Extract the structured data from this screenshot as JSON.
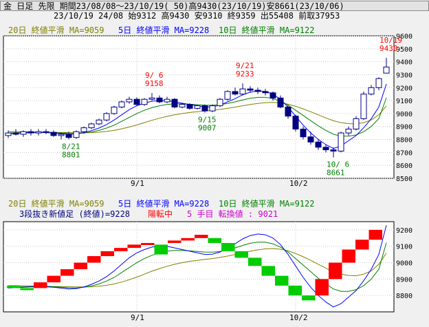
{
  "header": {
    "line1": "金 日足 先限 期間23/08/08～23/10/19( 50)高9430(23/10/19)安8661(23/10/06)",
    "line2": "23/10/19 24/08 始9312 高9430 安9310 終9359 出55408 前取37953"
  },
  "legend": {
    "ma20": "20日 終値平滑 MA=9059",
    "ma5": "5日 終値平滑 MA=9228",
    "ma10": "10日 終値平滑 MA=9122"
  },
  "lower_info": {
    "part1": "3段抜き新値足 (終値)=9228",
    "part2": "陽転中",
    "part3": "5 手目 転換値 : 9021"
  },
  "annotations": {
    "low1": {
      "date": "8/21",
      "value": "8801"
    },
    "high1": {
      "date": "9/ 6",
      "value": "9158"
    },
    "low2": {
      "date": "9/15",
      "value": "9007"
    },
    "high2": {
      "date": "9/21",
      "value": "9233"
    },
    "low3": {
      "date": "10/ 6",
      "value": "8661"
    },
    "high3": {
      "date": "10/19",
      "value": "9430"
    }
  },
  "colors": {
    "up": "#ff0000",
    "down": "#00cc00",
    "ma5": "#0000ff",
    "ma10": "#008000",
    "ma20": "#808000",
    "candle_down": "#000080"
  },
  "chart_data": [
    {
      "type": "candlestick",
      "title": "金 日足 先限",
      "ylim": [
        8500,
        9600
      ],
      "y_ticks": [
        8500,
        8600,
        8700,
        8800,
        8900,
        9000,
        9100,
        9200,
        9300,
        9400,
        9500,
        9600
      ],
      "x_ticks": [
        "9/1",
        "10/2"
      ],
      "ohlc": [
        [
          8830,
          8870,
          8810,
          8850
        ],
        [
          8850,
          8880,
          8830,
          8840
        ],
        [
          8840,
          8870,
          8820,
          8860
        ],
        [
          8860,
          8880,
          8830,
          8850
        ],
        [
          8850,
          8880,
          8830,
          8860
        ],
        [
          8860,
          8880,
          8840,
          8855
        ],
        [
          8855,
          8870,
          8820,
          8830
        ],
        [
          8830,
          8850,
          8800,
          8840
        ],
        [
          8840,
          8860,
          8801,
          8815
        ],
        [
          8815,
          8870,
          8805,
          8860
        ],
        [
          8860,
          8900,
          8845,
          8890
        ],
        [
          8890,
          8930,
          8880,
          8920
        ],
        [
          8920,
          8960,
          8910,
          8950
        ],
        [
          8950,
          9010,
          8940,
          9000
        ],
        [
          9000,
          9060,
          8990,
          9050
        ],
        [
          9050,
          9100,
          9040,
          9090
        ],
        [
          9090,
          9130,
          9075,
          9110
        ],
        [
          9110,
          9125,
          9060,
          9070
        ],
        [
          9070,
          9120,
          9060,
          9110
        ],
        [
          9110,
          9158,
          9100,
          9120
        ],
        [
          9120,
          9140,
          9080,
          9090
        ],
        [
          9090,
          9130,
          9080,
          9110
        ],
        [
          9110,
          9120,
          9040,
          9050
        ],
        [
          9050,
          9080,
          9040,
          9070
        ],
        [
          9070,
          9080,
          9030,
          9040
        ],
        [
          9040,
          9070,
          9030,
          9060
        ],
        [
          9060,
          9070,
          9007,
          9020
        ],
        [
          9020,
          9070,
          9010,
          9060
        ],
        [
          9060,
          9120,
          9050,
          9110
        ],
        [
          9110,
          9180,
          9100,
          9170
        ],
        [
          9170,
          9200,
          9140,
          9150
        ],
        [
          9150,
          9233,
          9140,
          9190
        ],
        [
          9190,
          9210,
          9160,
          9180
        ],
        [
          9180,
          9200,
          9150,
          9170
        ],
        [
          9170,
          9190,
          9140,
          9160
        ],
        [
          9160,
          9170,
          9100,
          9120
        ],
        [
          9120,
          9140,
          9040,
          9050
        ],
        [
          9050,
          9060,
          8960,
          8980
        ],
        [
          8980,
          8990,
          8860,
          8880
        ],
        [
          8880,
          8900,
          8800,
          8820
        ],
        [
          8820,
          8860,
          8760,
          8780
        ],
        [
          8780,
          8800,
          8720,
          8740
        ],
        [
          8740,
          8760,
          8700,
          8720
        ],
        [
          8720,
          8740,
          8661,
          8710
        ],
        [
          8710,
          8860,
          8700,
          8850
        ],
        [
          8850,
          8900,
          8830,
          8880
        ],
        [
          8880,
          8980,
          8870,
          8960
        ],
        [
          8960,
          9170,
          8950,
          9150
        ],
        [
          9150,
          9220,
          9140,
          9200
        ],
        [
          9200,
          9280,
          9180,
          9270
        ],
        [
          9312,
          9430,
          9310,
          9359
        ]
      ],
      "ma5": [
        8845,
        8848,
        8850,
        8852,
        8853,
        8853,
        8850,
        8845,
        8840,
        8842,
        8852,
        8868,
        8888,
        8915,
        8950,
        8990,
        9030,
        9060,
        9080,
        9095,
        9100,
        9100,
        9090,
        9080,
        9070,
        9060,
        9050,
        9052,
        9065,
        9090,
        9115,
        9145,
        9165,
        9175,
        9170,
        9150,
        9110,
        9050,
        8980,
        8910,
        8850,
        8800,
        8760,
        8730,
        8750,
        8790,
        8830,
        8890,
        8960,
        9050,
        9228
      ],
      "ma10": [
        8850,
        8852,
        8853,
        8854,
        8855,
        8855,
        8853,
        8850,
        8847,
        8846,
        8850,
        8858,
        8870,
        8888,
        8910,
        8940,
        8970,
        9000,
        9025,
        9045,
        9060,
        9070,
        9075,
        9075,
        9072,
        9068,
        9065,
        9064,
        9068,
        9078,
        9090,
        9105,
        9118,
        9125,
        9125,
        9115,
        9095,
        9065,
        9025,
        8985,
        8945,
        8905,
        8870,
        8840,
        8825,
        8825,
        8835,
        8860,
        8900,
        8960,
        9122
      ],
      "ma20": [
        8860,
        8860,
        8859,
        8858,
        8857,
        8856,
        8855,
        8854,
        8853,
        8852,
        8852,
        8853,
        8856,
        8862,
        8870,
        8882,
        8896,
        8912,
        8930,
        8948,
        8964,
        8978,
        8990,
        9000,
        9008,
        9014,
        9020,
        9025,
        9032,
        9040,
        9050,
        9060,
        9070,
        9078,
        9084,
        9086,
        9082,
        9072,
        9056,
        9036,
        9014,
        8990,
        8966,
        8944,
        8930,
        8922,
        8920,
        8930,
        8950,
        8990,
        9059
      ]
    },
    {
      "type": "three-line-break",
      "title": "3段抜き新値足 (終値)",
      "ylim": [
        8700,
        9250
      ],
      "y_ticks": [
        8800,
        8900,
        9000,
        9100,
        9200
      ],
      "x_ticks": [
        "9/1",
        "10/2"
      ],
      "boxes": [
        [
          "down",
          8845,
          8860
        ],
        [
          "down",
          8840,
          8845
        ],
        [
          "up",
          8845,
          8880
        ],
        [
          "up",
          8880,
          8920
        ],
        [
          "up",
          8920,
          8960
        ],
        [
          "up",
          8960,
          9000
        ],
        [
          "up",
          9000,
          9040
        ],
        [
          "up",
          9040,
          9070
        ],
        [
          "up",
          9070,
          9090
        ],
        [
          "up",
          9090,
          9110
        ],
        [
          "up",
          9110,
          9120
        ],
        [
          "down",
          9050,
          9110
        ],
        [
          "up",
          9120,
          9135
        ],
        [
          "up",
          9135,
          9150
        ],
        [
          "up",
          9150,
          9170
        ],
        [
          "down",
          9120,
          9150
        ],
        [
          "down",
          9070,
          9120
        ],
        [
          "down",
          9030,
          9070
        ],
        [
          "down",
          8980,
          9030
        ],
        [
          "down",
          8920,
          8980
        ],
        [
          "down",
          8860,
          8920
        ],
        [
          "down",
          8800,
          8860
        ],
        [
          "down",
          8770,
          8800
        ],
        [
          "up",
          8800,
          8900
        ],
        [
          "up",
          8900,
          9000
        ],
        [
          "up",
          9000,
          9080
        ],
        [
          "up",
          9080,
          9140
        ],
        [
          "up",
          9140,
          9200
        ]
      ]
    }
  ]
}
